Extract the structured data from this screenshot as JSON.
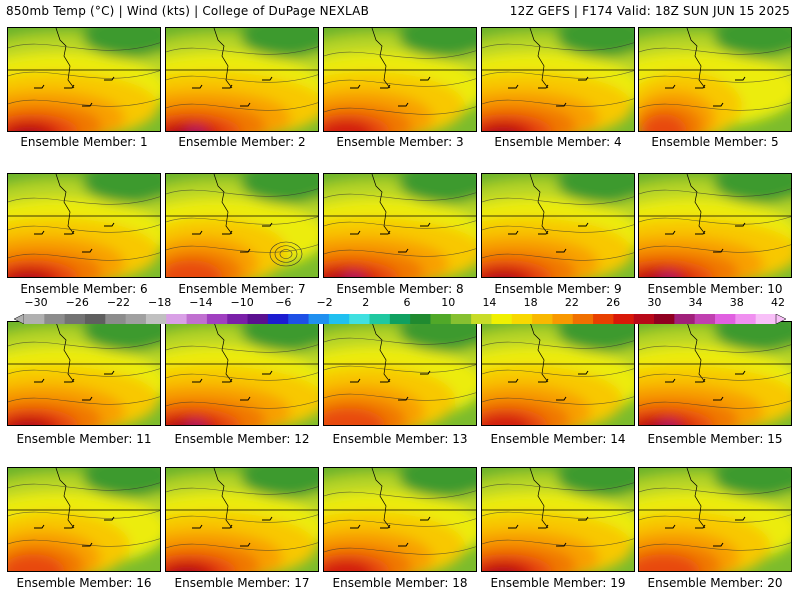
{
  "header": {
    "left": "850mb Temp (°C) | Wind (kts) | College of DuPage NEXLAB",
    "right": "12Z GEFS | F174 Valid: 18Z SUN JUN 15 2025"
  },
  "members": [
    {
      "label": "Ensemble Member: 1"
    },
    {
      "label": "Ensemble Member: 2"
    },
    {
      "label": "Ensemble Member: 3"
    },
    {
      "label": "Ensemble Member: 4"
    },
    {
      "label": "Ensemble Member: 5"
    },
    {
      "label": "Ensemble Member: 6"
    },
    {
      "label": "Ensemble Member: 7"
    },
    {
      "label": "Ensemble Member: 8"
    },
    {
      "label": "Ensemble Member: 9"
    },
    {
      "label": "Ensemble Member: 10"
    },
    {
      "label": "Ensemble Member: 11"
    },
    {
      "label": "Ensemble Member: 12"
    },
    {
      "label": "Ensemble Member: 13"
    },
    {
      "label": "Ensemble Member: 14"
    },
    {
      "label": "Ensemble Member: 15"
    },
    {
      "label": "Ensemble Member: 16"
    },
    {
      "label": "Ensemble Member: 17"
    },
    {
      "label": "Ensemble Member: 18"
    },
    {
      "label": "Ensemble Member: 19"
    },
    {
      "label": "Ensemble Member: 20"
    }
  ],
  "colorbar": {
    "tick_labels": [
      "−30",
      "−26",
      "−22",
      "−18",
      "−14",
      "−10",
      "−6",
      "−2",
      "2",
      "6",
      "10",
      "14",
      "18",
      "22",
      "26",
      "30",
      "34",
      "38",
      "42"
    ],
    "colors": [
      "#b0b0b0",
      "#8c8c8c",
      "#737373",
      "#5f5f5f",
      "#8c8c8c",
      "#a0a0a0",
      "#c0c0c0",
      "#d9a0e6",
      "#c070d0",
      "#a040c0",
      "#7a20a8",
      "#5a1090",
      "#1c1cd0",
      "#1e50e6",
      "#2090f0",
      "#20c0f0",
      "#40e0e0",
      "#20c8a0",
      "#10a060",
      "#208a30",
      "#50a828",
      "#86c030",
      "#c8dc28",
      "#f0f000",
      "#f8d800",
      "#f8b800",
      "#f89800",
      "#f07000",
      "#e84000",
      "#d81808",
      "#b80818",
      "#900020",
      "#a0207a",
      "#c040b0",
      "#e060e0",
      "#f090f0",
      "#f8c0f8"
    ]
  }
}
